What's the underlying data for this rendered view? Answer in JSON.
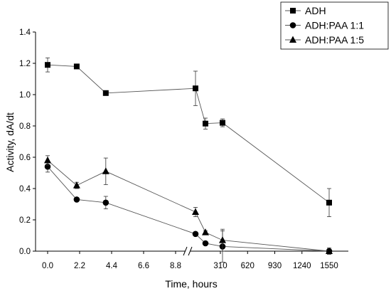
{
  "chart_data": {
    "type": "line",
    "title": "",
    "xlabel": "Time, hours",
    "ylabel": "Activity, dA/dt",
    "ylim": [
      0,
      1.4
    ],
    "yticks": [
      "0.0",
      "0.2",
      "0.4",
      "0.6",
      "0.8",
      "1.0",
      "1.2",
      "1.4"
    ],
    "xticks": [
      "0.0",
      "2.2",
      "4.4",
      "6.6",
      "8.8",
      "310",
      "620",
      "930",
      "1240",
      "1550"
    ],
    "x_axis_break": "between 8.8 and 310",
    "grid": false,
    "legend_position": "top-right",
    "series": [
      {
        "name": "ADH",
        "marker": "square",
        "points": [
          {
            "x": 0.0,
            "y": 1.19,
            "err": 0.045
          },
          {
            "x": 2.0,
            "y": 1.18,
            "err": 0.01
          },
          {
            "x": 4.0,
            "y": 1.01,
            "err": 0.015
          },
          {
            "x": 24,
            "y": 1.04,
            "err": 0.11
          },
          {
            "x": 150,
            "y": 0.815,
            "err": 0.035
          },
          {
            "x": 350,
            "y": 0.82,
            "err": 0.025
          },
          {
            "x": 1550,
            "y": 0.31,
            "err": 0.09
          }
        ]
      },
      {
        "name": "ADH:PAA 1:1",
        "marker": "circle",
        "points": [
          {
            "x": 0.0,
            "y": 0.54,
            "err": 0.035
          },
          {
            "x": 2.0,
            "y": 0.33,
            "err": 0.01
          },
          {
            "x": 4.0,
            "y": 0.31,
            "err": 0.04
          },
          {
            "x": 24,
            "y": 0.11,
            "err": 0.01
          },
          {
            "x": 150,
            "y": 0.05,
            "err": 0.01
          },
          {
            "x": 350,
            "y": 0.03,
            "err": 0.1
          },
          {
            "x": 1550,
            "y": 0.0,
            "err": 0.02
          }
        ]
      },
      {
        "name": "ADH:PAA 1:5",
        "marker": "triangle",
        "points": [
          {
            "x": 0.0,
            "y": 0.58,
            "err": 0.03
          },
          {
            "x": 2.0,
            "y": 0.42,
            "err": 0.02
          },
          {
            "x": 4.0,
            "y": 0.51,
            "err": 0.085
          },
          {
            "x": 24,
            "y": 0.25,
            "err": 0.03
          },
          {
            "x": 150,
            "y": 0.12,
            "err": 0.01
          },
          {
            "x": 350,
            "y": 0.07,
            "err": 0.07
          },
          {
            "x": 1550,
            "y": 0.0,
            "err": 0.015
          }
        ]
      }
    ]
  }
}
